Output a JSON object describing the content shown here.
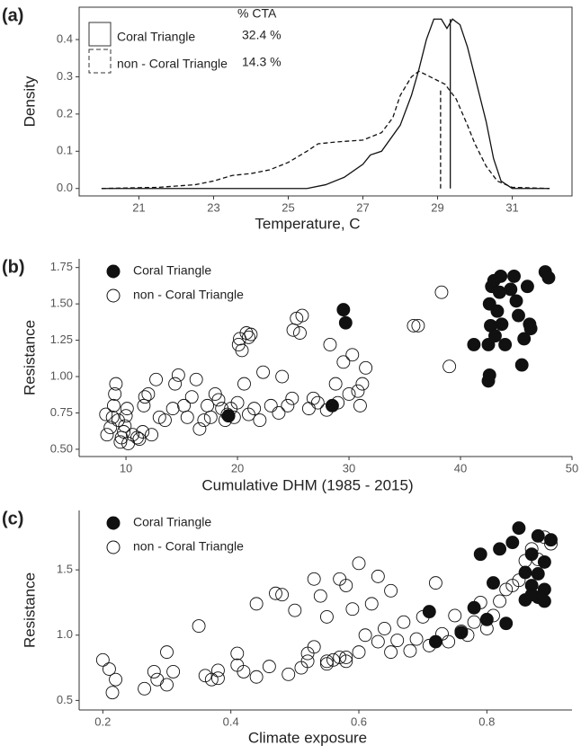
{
  "chart_data": [
    {
      "type": "line",
      "panel": "(a)",
      "xlabel": "Temperature,  C",
      "ylabel": "Density",
      "legend_title": "% CTA",
      "xlim": [
        19.4,
        32.6
      ],
      "ylim": [
        -0.02,
        0.487
      ],
      "xticks": [
        21,
        23,
        25,
        27,
        29,
        31
      ],
      "yticks": [
        {
          "value": 0,
          "label": "0.0"
        },
        0.1,
        0.2,
        0.3,
        0.4
      ],
      "series": [
        {
          "name": "Coral Triangle",
          "cta": "32.4 %",
          "linestyle": "solid",
          "color": "#111",
          "x": [
            20,
            25.5,
            26,
            26.5,
            27,
            27.2,
            27.5,
            28,
            28.3,
            28.5,
            28.7,
            28.9,
            29.1,
            29.25,
            29.4,
            29.6,
            29.8,
            30,
            30.3,
            30.5,
            30.7,
            31,
            32
          ],
          "values": [
            0,
            0,
            0.01,
            0.03,
            0.065,
            0.09,
            0.1,
            0.17,
            0.25,
            0.32,
            0.4,
            0.455,
            0.455,
            0.43,
            0.455,
            0.44,
            0.38,
            0.3,
            0.18,
            0.08,
            0.02,
            0,
            0
          ]
        },
        {
          "name": "non - Coral Triangle",
          "cta": "14.3 %",
          "linestyle": "dashed",
          "color": "#111",
          "x": [
            20,
            21.5,
            22.5,
            23,
            23.5,
            24,
            24.5,
            25,
            25.5,
            25.8,
            26.3,
            27,
            27.5,
            27.8,
            28,
            28.3,
            28.5,
            28.8,
            29.2,
            29.5,
            29.8,
            30,
            30.3,
            30.6,
            31,
            32
          ],
          "values": [
            0,
            0.003,
            0.01,
            0.02,
            0.035,
            0.04,
            0.05,
            0.07,
            0.1,
            0.12,
            0.125,
            0.13,
            0.15,
            0.19,
            0.25,
            0.3,
            0.315,
            0.3,
            0.28,
            0.24,
            0.17,
            0.12,
            0.06,
            0.02,
            0.003,
            0
          ]
        }
      ],
      "vlines": [
        {
          "value": 29.34,
          "linestyle": "solid"
        },
        {
          "value": 29.08,
          "linestyle": "dashed"
        }
      ]
    },
    {
      "type": "scatter",
      "panel": "(b)",
      "xlabel": "Cumulative DHM (1985 - 2015)",
      "ylabel": "Resistance",
      "xlim": [
        5.8,
        50
      ],
      "ylim": [
        0.45,
        1.81
      ],
      "xticks": [
        10,
        20,
        30,
        40,
        50
      ],
      "yticks": [
        {
          "value": 0.5,
          "label": "0.50"
        },
        {
          "value": 0.75,
          "label": "0.75"
        },
        {
          "value": 1,
          "label": "1.00"
        },
        {
          "value": 1.25,
          "label": "1.25"
        },
        {
          "value": 1.5,
          "label": "1.50"
        },
        {
          "value": 1.75,
          "label": "1.75"
        }
      ],
      "series": [
        {
          "name": "non - Coral Triangle",
          "filled": false,
          "color": "#111",
          "x": [
            8.2,
            8.3,
            8.6,
            8.8,
            8.9,
            9.0,
            9.1,
            9.3,
            9.5,
            9.6,
            9.8,
            9.9,
            10.0,
            10.1,
            10.2,
            10.6,
            11.0,
            11.2,
            11.5,
            11.6,
            11.7,
            12.0,
            12.3,
            12.7,
            13.0,
            13.5,
            14.2,
            14.4,
            14.7,
            15.2,
            15.5,
            15.9,
            16.3,
            16.6,
            17.0,
            17.3,
            17.6,
            18.0,
            18.3,
            18.6,
            18.9,
            19.1,
            19.4,
            19.7,
            20.0,
            20.1,
            20.2,
            20.4,
            20.6,
            20.8,
            21.0,
            21.2,
            21.0,
            21.5,
            22.0,
            22.3,
            23.0,
            23.7,
            24.0,
            24.5,
            24.9,
            25.0,
            25.3,
            25.8,
            25.6,
            26.4,
            26.8,
            27.2,
            28.0,
            28.3,
            28.8,
            29.0,
            29.5,
            30.0,
            30.3,
            30.8,
            31.0,
            31.2,
            31.5,
            35.8,
            36.2,
            38.3,
            39.0
          ],
          "values": [
            0.74,
            0.6,
            0.65,
            0.72,
            0.8,
            0.88,
            0.95,
            0.7,
            0.55,
            0.58,
            0.62,
            0.66,
            0.73,
            0.78,
            0.54,
            0.6,
            0.58,
            0.57,
            0.62,
            0.8,
            0.86,
            0.88,
            0.6,
            0.98,
            0.72,
            0.7,
            0.78,
            0.95,
            1.01,
            0.8,
            0.72,
            0.86,
            0.98,
            0.64,
            0.7,
            0.8,
            0.72,
            0.88,
            0.84,
            0.78,
            0.7,
            0.74,
            0.78,
            0.72,
            0.82,
            1.22,
            1.26,
            1.18,
            0.95,
            1.3,
            1.27,
            1.29,
            0.74,
            0.78,
            0.7,
            1.03,
            0.8,
            0.75,
            1.0,
            0.8,
            0.85,
            1.32,
            1.4,
            1.42,
            1.3,
            0.78,
            0.85,
            0.82,
            0.77,
            1.22,
            0.95,
            0.82,
            1.1,
            0.88,
            1.15,
            0.9,
            0.8,
            0.95,
            1.06,
            1.35,
            1.35,
            1.58,
            1.07
          ]
        },
        {
          "name": "Coral Triangle",
          "filled": true,
          "color": "#111",
          "x": [
            29.5,
            29.7,
            41.2,
            42.5,
            42.6,
            42.5,
            42.7,
            42.6,
            42.8,
            43.0,
            43.6,
            43.5,
            43.3,
            43.7,
            43.1,
            44.0,
            44.8,
            45.0,
            45.2,
            45.5,
            45.7,
            46.2,
            46.3,
            46.0,
            47.6,
            47.9,
            44.5,
            28.5,
            19.2
          ],
          "values": [
            1.46,
            1.37,
            1.22,
            0.97,
            1.01,
            1.22,
            1.35,
            1.5,
            1.62,
            1.66,
            1.69,
            1.58,
            1.45,
            1.36,
            1.28,
            1.22,
            1.69,
            1.52,
            1.42,
            1.08,
            1.26,
            1.36,
            1.33,
            1.62,
            1.72,
            1.68,
            1.6,
            0.8,
            0.73
          ]
        }
      ]
    },
    {
      "type": "scatter",
      "panel": "(c)",
      "xlabel": "Climate exposure",
      "ylabel": "Resistance",
      "xlim": [
        0.163,
        0.933
      ],
      "ylim": [
        0.427,
        1.955
      ],
      "xticks": [
        0.2,
        0.4,
        0.6,
        0.8
      ],
      "yticks": [
        0.5,
        {
          "value": 1,
          "label": "1.0"
        },
        1.5
      ],
      "series": [
        {
          "name": "Coral Triangle",
          "filled": true,
          "color": "#111",
          "x": [
            0.71,
            0.72,
            0.76,
            0.78,
            0.79,
            0.8,
            0.81,
            0.82,
            0.83,
            0.84,
            0.85,
            0.86,
            0.86,
            0.87,
            0.87,
            0.88,
            0.88,
            0.88,
            0.89,
            0.89,
            0.9,
            0.89,
            0.87
          ],
          "values": [
            1.18,
            0.95,
            1.02,
            1.21,
            1.62,
            1.12,
            1.4,
            1.66,
            1.09,
            1.71,
            1.82,
            1.48,
            1.27,
            1.62,
            1.38,
            1.76,
            1.47,
            1.29,
            1.35,
            1.56,
            1.73,
            1.26,
            1.31
          ]
        },
        {
          "name": "non - Coral Triangle",
          "filled": false,
          "color": "#111",
          "x": [
            0.2,
            0.21,
            0.215,
            0.22,
            0.265,
            0.28,
            0.285,
            0.3,
            0.3,
            0.31,
            0.35,
            0.36,
            0.37,
            0.38,
            0.38,
            0.41,
            0.41,
            0.42,
            0.44,
            0.44,
            0.46,
            0.47,
            0.48,
            0.49,
            0.5,
            0.51,
            0.52,
            0.53,
            0.53,
            0.54,
            0.55,
            0.55,
            0.56,
            0.57,
            0.57,
            0.58,
            0.58,
            0.59,
            0.6,
            0.6,
            0.61,
            0.62,
            0.63,
            0.63,
            0.64,
            0.65,
            0.65,
            0.66,
            0.67,
            0.68,
            0.69,
            0.7,
            0.71,
            0.72,
            0.73,
            0.74,
            0.75,
            0.76,
            0.77,
            0.78,
            0.79,
            0.8,
            0.81,
            0.82,
            0.83,
            0.84,
            0.85,
            0.86,
            0.87,
            0.88,
            0.89,
            0.9,
            0.55,
            0.52,
            0.58
          ],
          "values": [
            0.81,
            0.74,
            0.56,
            0.66,
            0.59,
            0.72,
            0.66,
            0.87,
            0.62,
            0.72,
            1.07,
            0.69,
            0.66,
            0.73,
            0.67,
            0.77,
            0.86,
            0.72,
            0.68,
            1.24,
            0.76,
            1.32,
            1.31,
            0.7,
            1.19,
            0.75,
            0.86,
            1.43,
            0.91,
            1.3,
            1.14,
            0.8,
            0.81,
            0.83,
            1.43,
            1.38,
            0.8,
            1.2,
            0.87,
            1.55,
            1.0,
            1.24,
            0.95,
            1.45,
            1.05,
            0.87,
            1.34,
            0.96,
            1.1,
            0.88,
            0.97,
            1.14,
            0.92,
            1.4,
            1.01,
            0.95,
            1.15,
            1.03,
            1.0,
            1.1,
            1.25,
            1.05,
            1.15,
            1.26,
            1.35,
            1.38,
            1.42,
            1.57,
            1.66,
            1.58,
            1.75,
            1.7,
            0.78,
            0.8,
            0.83
          ]
        }
      ]
    }
  ]
}
